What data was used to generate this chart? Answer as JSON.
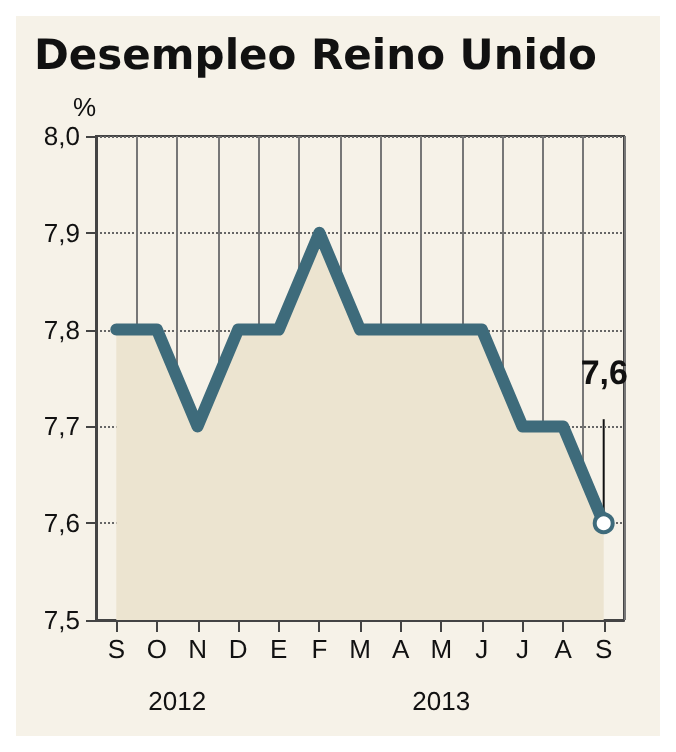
{
  "chart_data": {
    "type": "area",
    "title": "Desempleo Reino Unido",
    "ylabel": "%",
    "categories": [
      "S",
      "O",
      "N",
      "D",
      "E",
      "F",
      "M",
      "A",
      "M",
      "J",
      "J",
      "A",
      "S"
    ],
    "series": [
      {
        "color": "#3e6b7b",
        "values": [
          7.8,
          7.8,
          7.7,
          7.8,
          7.8,
          7.9,
          7.8,
          7.8,
          7.8,
          7.8,
          7.7,
          7.7,
          7.6
        ],
        "value_labels": [
          null,
          null,
          null,
          null,
          null,
          null,
          null,
          null,
          null,
          null,
          null,
          null,
          "7,6"
        ]
      }
    ],
    "ylim": [
      7.5,
      8.0
    ],
    "yticks": [
      {
        "value": 7.5,
        "label": "7,5"
      },
      {
        "value": 7.6,
        "label": "7,6"
      },
      {
        "value": 7.7,
        "label": "7,7"
      },
      {
        "value": 7.8,
        "label": "7,8"
      },
      {
        "value": 7.9,
        "label": "7,9"
      },
      {
        "value": 8.0,
        "label": "8,0"
      }
    ],
    "annotations": [
      "2012",
      "2013"
    ],
    "grid": true,
    "line_style": "solid"
  }
}
